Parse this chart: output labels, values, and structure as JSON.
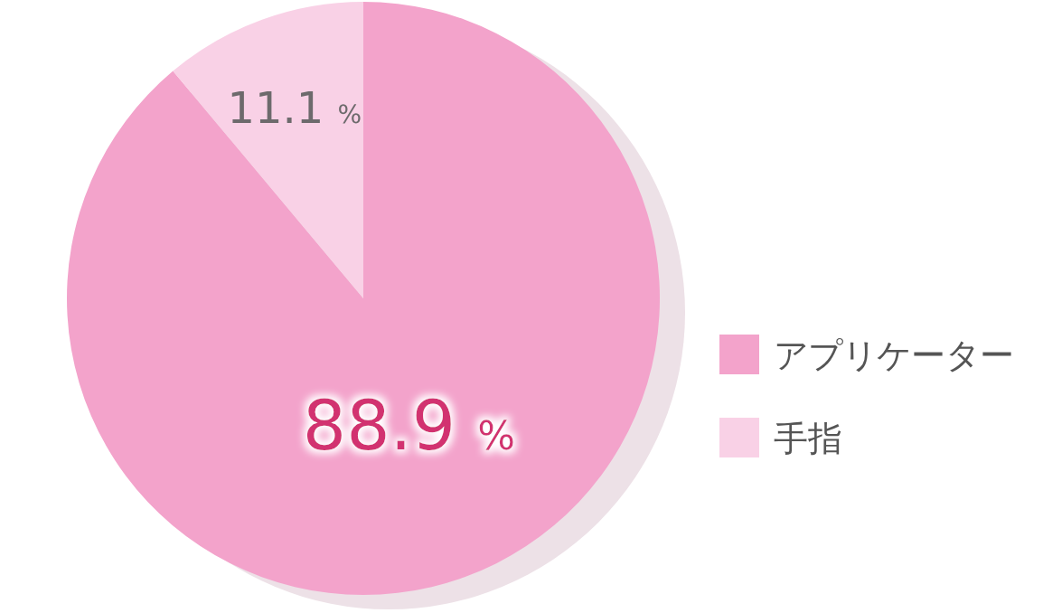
{
  "chart_data": {
    "type": "pie",
    "categories": [
      "アプリケーター",
      "手指"
    ],
    "values": [
      88.9,
      11.1
    ],
    "colors": [
      "#f3a3cb",
      "#f9d1e6"
    ],
    "value_labels": [
      "88.9 %",
      "11.1 %"
    ],
    "legend": "right"
  }
}
